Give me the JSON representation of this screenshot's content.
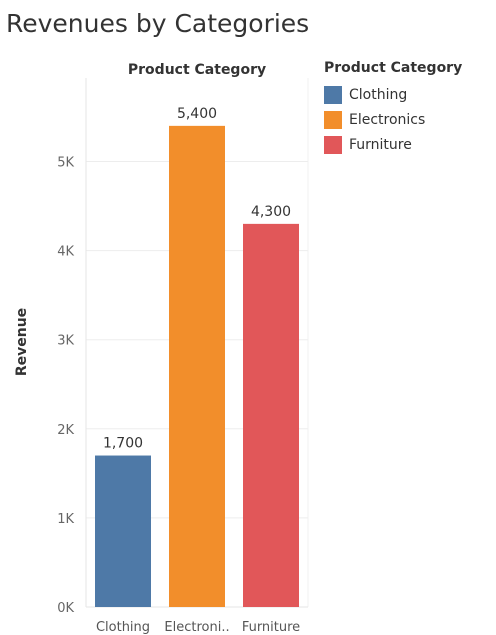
{
  "title": "Revenues by Categories",
  "chart_data": {
    "type": "bar",
    "title": "Revenues by Categories",
    "header": "Product Category",
    "xlabel": "",
    "ylabel": "Revenue",
    "categories": [
      "Clothing",
      "Electronics",
      "Furniture"
    ],
    "tick_labels": [
      "Clothing",
      "Electroni..",
      "Furniture"
    ],
    "values": [
      1700,
      5400,
      4300
    ],
    "data_labels": [
      "1,700",
      "5,400",
      "4,300"
    ],
    "colors": [
      "#4e79a7",
      "#f28e2b",
      "#e15759"
    ],
    "ylim": [
      0,
      5800
    ],
    "yticks": [
      0,
      1000,
      2000,
      3000,
      4000,
      5000
    ],
    "ytick_labels": [
      "0K",
      "1K",
      "2K",
      "3K",
      "4K",
      "5K"
    ],
    "grid": true,
    "legend": {
      "title": "Product Category",
      "position": "right",
      "entries": [
        "Clothing",
        "Electronics",
        "Furniture"
      ]
    }
  }
}
